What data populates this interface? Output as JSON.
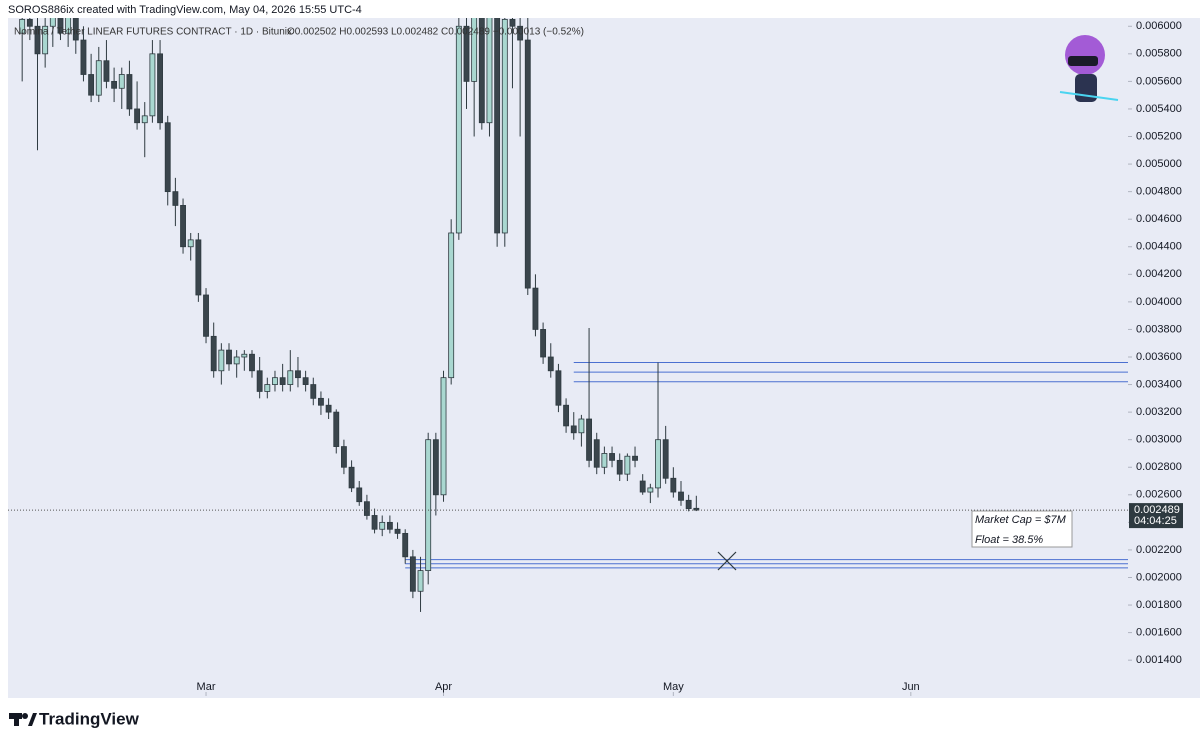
{
  "header": {
    "credit": "SOROS886ix created with TradingView.com, May 04, 2026 15:55 UTC-4"
  },
  "chart_data": {
    "type": "candlestick",
    "symbol": "Nomina / Tether LINEAR FUTURES CONTRACT · 1D · Bitunix",
    "ohlc_text": "O0.002502 H0.002593 L0.002482 C0.002489 −0.000013 (−0.52%)",
    "up_color": "#a9d7d0",
    "down_color": "#3a454c",
    "outline_color": "#2e3a40",
    "x": [
      4,
      5,
      6,
      7,
      8,
      9,
      10,
      11,
      12,
      13,
      14,
      15,
      16,
      17,
      18,
      19,
      20,
      21,
      22,
      23,
      24,
      25,
      26,
      27,
      28,
      29,
      30,
      31,
      32,
      33,
      34,
      35,
      36,
      37,
      38,
      39,
      40,
      41,
      42,
      43,
      44,
      45,
      46,
      47,
      48,
      49,
      50,
      51,
      52,
      53,
      54,
      55,
      56,
      57,
      58,
      59,
      60,
      61,
      62,
      63,
      64,
      65,
      66,
      67,
      68,
      69,
      70,
      71,
      72,
      73,
      74,
      75,
      76,
      77,
      78,
      79,
      80,
      81,
      82,
      83,
      84,
      85,
      86,
      87,
      88,
      89,
      90,
      91,
      92
    ],
    "open": [
      0.00595,
      0.00605,
      0.006,
      0.0058,
      0.006,
      0.0061,
      0.00595,
      0.0061,
      0.0059,
      0.00565,
      0.0055,
      0.00575,
      0.0056,
      0.00555,
      0.00565,
      0.0054,
      0.0053,
      0.00535,
      0.0058,
      0.0053,
      0.0048,
      0.0047,
      0.0044,
      0.00445,
      0.00405,
      0.00375,
      0.0035,
      0.00365,
      0.00355,
      0.0036,
      0.00362,
      0.0035,
      0.00335,
      0.0034,
      0.00345,
      0.0034,
      0.0035,
      0.00345,
      0.0034,
      0.0033,
      0.00325,
      0.0032,
      0.00295,
      0.0028,
      0.00265,
      0.00255,
      0.00245,
      0.00235,
      0.0024,
      0.00235,
      0.00232,
      0.00215,
      0.0019,
      0.00205,
      0.003,
      0.0026,
      0.00345,
      0.0045,
      0.006,
      0.0056,
      0.0061,
      0.0053,
      0.0061,
      0.0045,
      0.00605,
      0.006,
      0.0059,
      0.0041,
      0.0038,
      0.0036,
      0.0035,
      0.00325,
      0.0031,
      0.00305,
      0.00315,
      0.003,
      0.0028,
      0.0029,
      0.00285,
      0.00275,
      0.00288,
      0.0027,
      0.00262,
      0.00265,
      0.003,
      0.00272,
      0.00262,
      0.00256,
      0.002502
    ],
    "high": [
      0.0062,
      0.00625,
      0.00615,
      0.0061,
      0.0062,
      0.00625,
      0.0062,
      0.0062,
      0.006,
      0.0058,
      0.00585,
      0.0059,
      0.0057,
      0.0057,
      0.00575,
      0.0056,
      0.00545,
      0.0059,
      0.0059,
      0.00535,
      0.0049,
      0.00475,
      0.0045,
      0.0045,
      0.0041,
      0.00385,
      0.0037,
      0.0037,
      0.00365,
      0.00365,
      0.00365,
      0.0036,
      0.00345,
      0.0035,
      0.00355,
      0.00365,
      0.0036,
      0.0035,
      0.00345,
      0.00335,
      0.0033,
      0.00322,
      0.003,
      0.00285,
      0.0027,
      0.0026,
      0.0025,
      0.00245,
      0.00245,
      0.0024,
      0.00235,
      0.0022,
      0.00215,
      0.00305,
      0.00305,
      0.0035,
      0.0046,
      0.0062,
      0.00625,
      0.00625,
      0.00625,
      0.0062,
      0.00625,
      0.0062,
      0.00625,
      0.00625,
      0.0062,
      0.0042,
      0.00385,
      0.0037,
      0.00355,
      0.0033,
      0.0032,
      0.00318,
      0.00381,
      0.00305,
      0.00295,
      0.00295,
      0.0029,
      0.0029,
      0.00295,
      0.00275,
      0.00268,
      0.00356,
      0.0031,
      0.0028,
      0.0027,
      0.0026,
      0.002593
    ],
    "low": [
      0.0056,
      0.0059,
      0.0051,
      0.0057,
      0.00585,
      0.0059,
      0.00585,
      0.0058,
      0.0056,
      0.00545,
      0.00545,
      0.00555,
      0.00545,
      0.0054,
      0.00535,
      0.00525,
      0.00505,
      0.0053,
      0.00525,
      0.0047,
      0.00455,
      0.00435,
      0.0043,
      0.004,
      0.0037,
      0.00345,
      0.0034,
      0.0035,
      0.00345,
      0.0035,
      0.00345,
      0.0033,
      0.0033,
      0.00335,
      0.00335,
      0.00335,
      0.00338,
      0.00335,
      0.00325,
      0.00318,
      0.00315,
      0.0029,
      0.00275,
      0.00262,
      0.00252,
      0.00242,
      0.00232,
      0.0023,
      0.00232,
      0.00228,
      0.0021,
      0.00185,
      0.00175,
      0.00195,
      0.00245,
      0.00255,
      0.0034,
      0.00445,
      0.0054,
      0.0052,
      0.00525,
      0.0052,
      0.0044,
      0.0044,
      0.00555,
      0.0052,
      0.00405,
      0.00375,
      0.00355,
      0.00345,
      0.0032,
      0.00305,
      0.003,
      0.00295,
      0.0028,
      0.00275,
      0.00275,
      0.0028,
      0.0027,
      0.0027,
      0.0028,
      0.0026,
      0.00254,
      0.00258,
      0.00268,
      0.00258,
      0.00252,
      0.00248,
      0.002482
    ],
    "close": [
      0.00605,
      0.006,
      0.0058,
      0.006,
      0.0061,
      0.00595,
      0.0061,
      0.0059,
      0.00565,
      0.0055,
      0.00575,
      0.0056,
      0.00555,
      0.00565,
      0.0054,
      0.0053,
      0.00535,
      0.0058,
      0.0053,
      0.0048,
      0.0047,
      0.0044,
      0.00445,
      0.00405,
      0.00375,
      0.0035,
      0.00365,
      0.00355,
      0.0036,
      0.00362,
      0.0035,
      0.00335,
      0.0034,
      0.00345,
      0.0034,
      0.0035,
      0.00345,
      0.0034,
      0.0033,
      0.00325,
      0.0032,
      0.00295,
      0.0028,
      0.00265,
      0.00255,
      0.00245,
      0.00235,
      0.0024,
      0.00235,
      0.00232,
      0.00215,
      0.0019,
      0.00205,
      0.003,
      0.0026,
      0.00345,
      0.0045,
      0.006,
      0.0056,
      0.0061,
      0.0053,
      0.0061,
      0.0045,
      0.00605,
      0.006,
      0.0059,
      0.0041,
      0.0038,
      0.0036,
      0.0035,
      0.00325,
      0.0031,
      0.00305,
      0.00315,
      0.00285,
      0.0028,
      0.0029,
      0.00285,
      0.00275,
      0.00288,
      0.00285,
      0.00262,
      0.00265,
      0.003,
      0.00272,
      0.00262,
      0.00256,
      0.0025,
      0.002489
    ],
    "xlim": [
      2.15,
      148.35
    ],
    "xticks": [
      {
        "value": 28,
        "label": "Mar"
      },
      {
        "value": 59,
        "label": "Apr"
      },
      {
        "value": 89,
        "label": "May"
      },
      {
        "value": 120,
        "label": "Jun"
      }
    ],
    "ylim": [
      0.00114,
      0.00606
    ],
    "yticks": [
      {
        "value": 0.0014,
        "label": "0.001400"
      },
      {
        "value": 0.0016,
        "label": "0.001600"
      },
      {
        "value": 0.0018,
        "label": "0.001800"
      },
      {
        "value": 0.002,
        "label": "0.002000"
      },
      {
        "value": 0.0022,
        "label": "0.002200"
      },
      {
        "value": 0.0024,
        "label": "0.002400"
      },
      {
        "value": 0.0026,
        "label": "0.002600"
      },
      {
        "value": 0.0028,
        "label": "0.002800"
      },
      {
        "value": 0.003,
        "label": "0.003000"
      },
      {
        "value": 0.0032,
        "label": "0.003200"
      },
      {
        "value": 0.0034,
        "label": "0.003400"
      },
      {
        "value": 0.0036,
        "label": "0.003600"
      },
      {
        "value": 0.0038,
        "label": "0.003800"
      },
      {
        "value": 0.004,
        "label": "0.004000"
      },
      {
        "value": 0.0042,
        "label": "0.004200"
      },
      {
        "value": 0.0044,
        "label": "0.004400"
      },
      {
        "value": 0.0046,
        "label": "0.004600"
      },
      {
        "value": 0.0048,
        "label": "0.004800"
      },
      {
        "value": 0.005,
        "label": "0.005000"
      },
      {
        "value": 0.0052,
        "label": "0.005200"
      },
      {
        "value": 0.0054,
        "label": "0.005400"
      },
      {
        "value": 0.0056,
        "label": "0.005600"
      },
      {
        "value": 0.0058,
        "label": "0.005800"
      },
      {
        "value": 0.006,
        "label": "0.006000"
      }
    ],
    "last_price": {
      "value": 0.002489,
      "label": "0.002489"
    },
    "countdown": "04:04:25",
    "levels": [
      {
        "y": 0.00356,
        "x": 76
      },
      {
        "y": 0.00349,
        "x": 76
      },
      {
        "y": 0.00342,
        "x": 76
      },
      {
        "y": 0.00213,
        "x": 54
      },
      {
        "y": 0.0021,
        "x": 54
      },
      {
        "y": 0.00207,
        "x": 54
      }
    ],
    "level_color": "#4a6fd0",
    "annotation": [
      "Market Cap = $7M",
      "Float = 38.5%"
    ]
  },
  "footer": {
    "brand": "TradingView"
  }
}
